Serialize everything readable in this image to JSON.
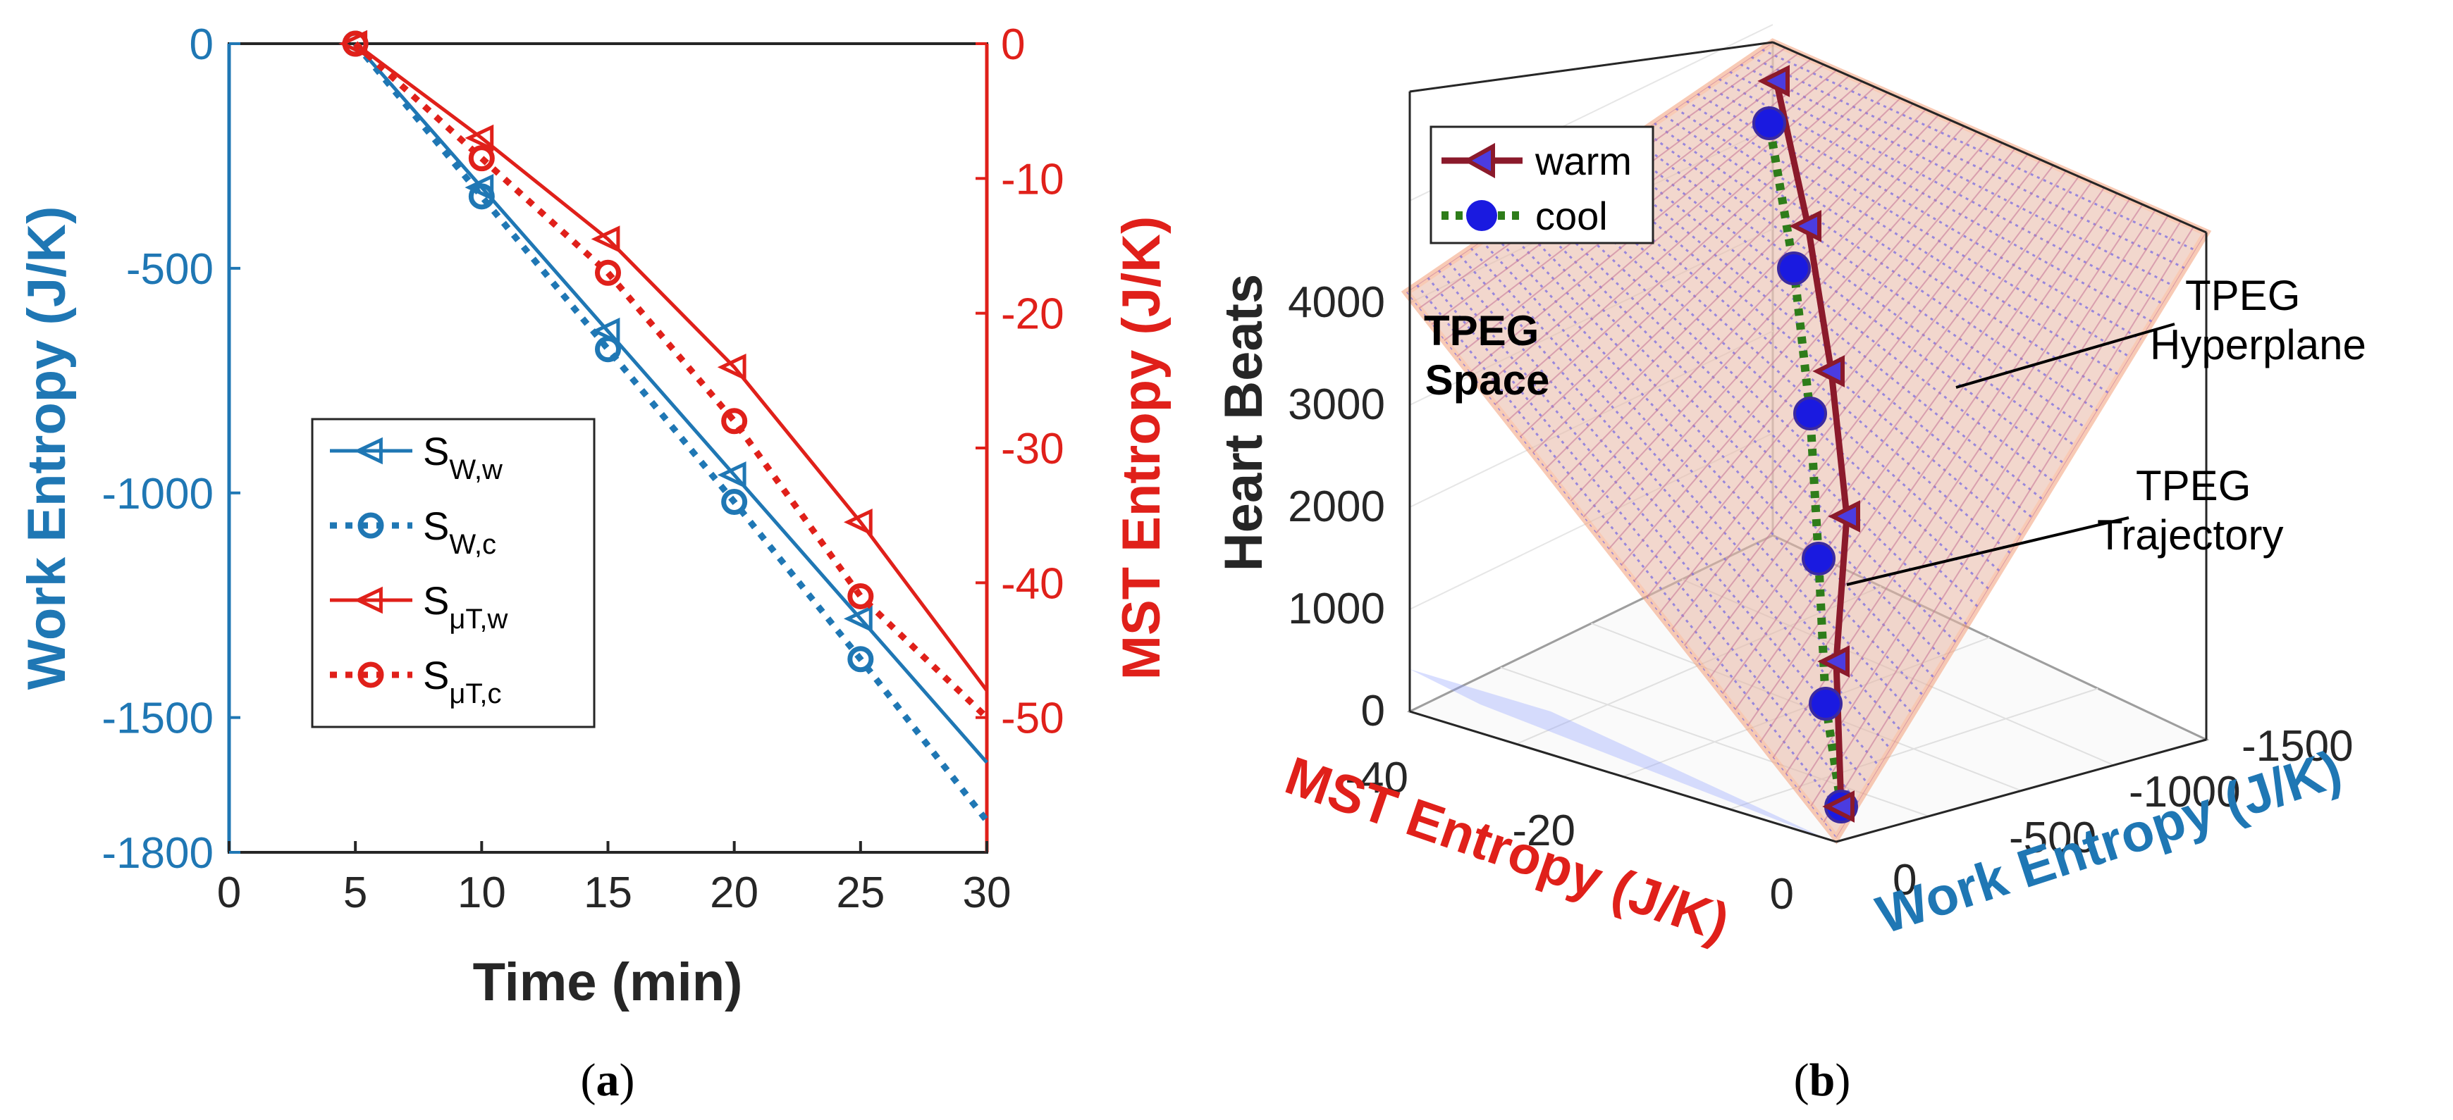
{
  "chart_data": [
    {
      "panel": "a",
      "type": "line",
      "caption_letter": "a",
      "xlabel": "Time (min)",
      "ylabel_left": "Work Entropy (J/K)",
      "ylabel_right": "MST Entropy (J/K)",
      "xlim": [
        0,
        30
      ],
      "ylim_left": [
        -1800,
        0
      ],
      "ylim_right": [
        -60,
        0
      ],
      "x_ticks": [
        "0",
        "5",
        "10",
        "15",
        "20",
        "25",
        "30"
      ],
      "y_left_ticks": [
        "0",
        "-500",
        "-1000",
        "-1500",
        "-1800"
      ],
      "y_left_tick_values": [
        0,
        -500,
        -1000,
        -1500,
        -1800
      ],
      "y_right_ticks": [
        "0",
        "-10",
        "-20",
        "-30",
        "-40",
        "-50"
      ],
      "y_right_tick_values": [
        0,
        -10,
        -20,
        -30,
        -40,
        -50
      ],
      "series": [
        {
          "name": "S",
          "sub": "W,w",
          "axis": "left",
          "color": "#1f77b4",
          "dashed": false,
          "marker": "triangle-left",
          "x": [
            5,
            10,
            15,
            20,
            25,
            30
          ],
          "values": [
            0,
            -320,
            -640,
            -960,
            -1280,
            -1600
          ]
        },
        {
          "name": "S",
          "sub": "W,c",
          "axis": "left",
          "color": "#1f77b4",
          "dashed": true,
          "marker": "circle",
          "x": [
            5,
            10,
            15,
            20,
            25,
            30
          ],
          "values": [
            0,
            -340,
            -680,
            -1020,
            -1370,
            -1730
          ]
        },
        {
          "name": "S",
          "sub": "μT,w",
          "axis": "right",
          "color": "#e0201a",
          "dashed": false,
          "marker": "triangle-left",
          "x": [
            5,
            10,
            15,
            20,
            25,
            30
          ],
          "values": [
            0,
            -7,
            -14.5,
            -24,
            -35.5,
            -48
          ]
        },
        {
          "name": "S",
          "sub": "μT,c",
          "axis": "right",
          "color": "#e0201a",
          "dashed": true,
          "marker": "circle",
          "x": [
            5,
            10,
            15,
            20,
            25,
            30
          ],
          "values": [
            0,
            -8.5,
            -17,
            -28,
            -41,
            -50
          ]
        }
      ]
    },
    {
      "panel": "b",
      "type": "scatter",
      "caption_letter": "b",
      "xlabel": "MST Entropy (J/K)",
      "ylabel": "Work Entropy (J/K)",
      "zlabel": "Heart Beats",
      "x_ticks": [
        "-40",
        "-20",
        "0"
      ],
      "y_ticks": [
        "0",
        "-500",
        "-1000",
        "-1500"
      ],
      "z_ticks": [
        "0",
        "1000",
        "2000",
        "3000",
        "4000"
      ],
      "legend": [
        {
          "label": "warm",
          "color": "#8b1a2b",
          "marker": "triangle-left"
        },
        {
          "label": "cool",
          "color": "#1a1ae0",
          "line_color": "#2e7d1a",
          "marker": "circle"
        }
      ],
      "series": [
        {
          "name": "warm",
          "z": [
            0,
            1000,
            2000,
            3000,
            4000,
            5000
          ]
        },
        {
          "name": "cool",
          "z": [
            0,
            1000,
            2000,
            3000,
            4000,
            5000
          ]
        }
      ],
      "annotations": {
        "space_line1": "TPEG",
        "space_line2": "Space",
        "hyper_line1": "TPEG",
        "hyper_line2": "Hyperplane",
        "traj_line1": "TPEG",
        "traj_line2": "Trajectory"
      }
    }
  ]
}
